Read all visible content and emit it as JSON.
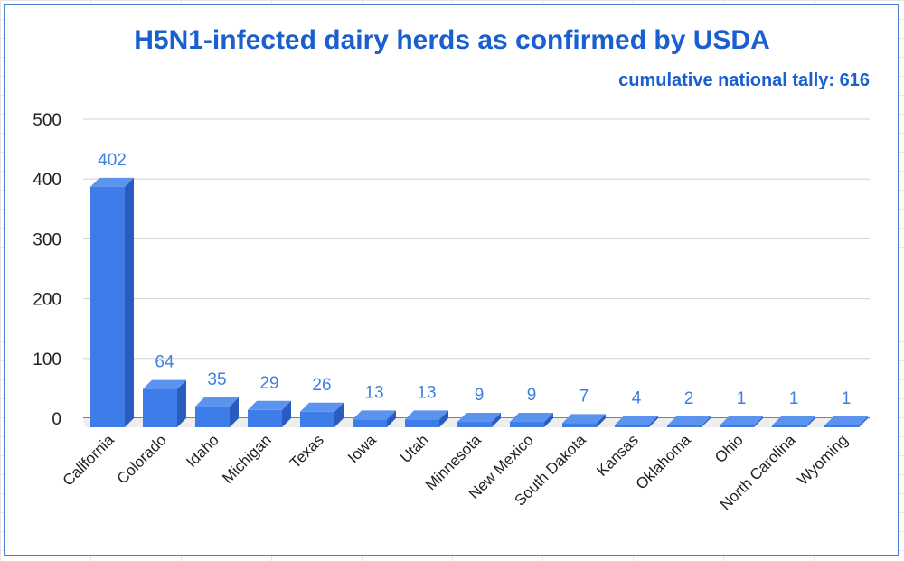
{
  "chart_data": {
    "type": "bar",
    "title": "H5N1-infected dairy herds as confirmed by USDA",
    "subtitle": "cumulative national tally: 616",
    "categories": [
      "California",
      "Colorado",
      "Idaho",
      "Michigan",
      "Texas",
      "Iowa",
      "Utah",
      "Minnesota",
      "New Mexico",
      "South Dakota",
      "Kansas",
      "Oklahoma",
      "Ohio",
      "North Carolina",
      "Wyoming"
    ],
    "values": [
      402,
      64,
      35,
      29,
      26,
      13,
      13,
      9,
      9,
      7,
      4,
      2,
      1,
      1,
      1
    ],
    "ylim": [
      0,
      500
    ],
    "yticks": [
      0,
      100,
      200,
      300,
      400,
      500
    ],
    "xlabel": "",
    "ylabel": "",
    "grid": true,
    "legend": "none",
    "colors": {
      "bar_front": "#3e7de9",
      "bar_side": "#2a5cbf",
      "bar_top": "#5b93ef",
      "label": "#3f7fe0",
      "title": "#1a5fd0"
    }
  }
}
